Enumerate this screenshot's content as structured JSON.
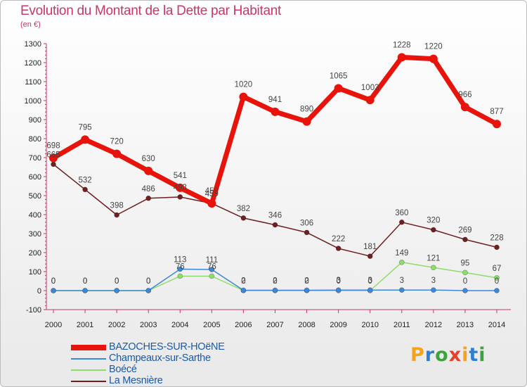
{
  "header": {
    "title": "Evolution du Montant de la Dette par Habitant",
    "unit": "(en €)"
  },
  "logo": {
    "letters": [
      "P",
      "r",
      "o",
      "x",
      "i",
      "t",
      "i"
    ],
    "colors": [
      "#f7a21b",
      "#2f7fd0",
      "#3da33d",
      "#e93e2b",
      "#f7a21b",
      "#2f7fd0",
      "#3da33d"
    ]
  },
  "chart_data": {
    "type": "line",
    "title": "Evolution du Montant de la Dette par Habitant",
    "ylabel": "(en €)",
    "x": [
      "2000",
      "2001",
      "2002",
      "2003",
      "2004",
      "2005",
      "2006",
      "2007",
      "2008",
      "2009",
      "2010",
      "2011",
      "2012",
      "2013",
      "2014"
    ],
    "ylim": [
      -100,
      1300
    ],
    "yticks": [
      -100,
      0,
      100,
      200,
      300,
      400,
      500,
      600,
      700,
      800,
      900,
      1000,
      1100,
      1200,
      1300
    ],
    "grid": false,
    "legend_position": "bottom-left",
    "series": [
      {
        "name": "BAZOCHES-SUR-HOëNE",
        "color": "#e8130b",
        "width": 7,
        "marker": 6,
        "values": [
          698,
          795,
          720,
          630,
          541,
          459,
          1020,
          941,
          890,
          1065,
          1003,
          1228,
          1220,
          966,
          877
        ],
        "labels": [
          "698",
          "795",
          "720",
          "630",
          "541",
          "459",
          "1020",
          "941",
          "890",
          "1065",
          "1003",
          "1228",
          "1220",
          "966",
          "877"
        ]
      },
      {
        "name": "Champeaux-sur-Sarthe",
        "color": "#3e86d6",
        "width": 1.5,
        "marker": 3.5,
        "values": [
          0,
          0,
          0,
          0,
          113,
          111,
          2,
          2,
          2,
          3,
          3,
          3,
          3,
          0,
          0
        ],
        "labels": [
          "0",
          "0",
          "0",
          "0",
          "113",
          "111",
          "2",
          "2",
          "2",
          "3",
          "3",
          "3",
          "3",
          "0",
          "0"
        ]
      },
      {
        "name": "Boécé",
        "color": "#8fdc6a",
        "width": 1.5,
        "marker": 3.5,
        "values": [
          0,
          0,
          0,
          0,
          76,
          76,
          0,
          0,
          0,
          0,
          0,
          149,
          121,
          95,
          67
        ],
        "labels": [
          "0",
          "0",
          "0",
          "0",
          "76",
          "76",
          "0",
          "0",
          "0",
          "0",
          "0",
          "149",
          "121",
          "95",
          "67"
        ]
      },
      {
        "name": "La Mesnière",
        "color": "#6e1f22",
        "width": 1.5,
        "marker": 3.5,
        "values": [
          665,
          532,
          398,
          486,
          493,
          459,
          382,
          346,
          306,
          222,
          181,
          360,
          320,
          269,
          228
        ],
        "labels": [
          "665",
          "532",
          "398",
          "486",
          "493",
          "459",
          "382",
          "346",
          "306",
          "222",
          "181",
          "360",
          "320",
          "269",
          "228"
        ]
      }
    ]
  }
}
